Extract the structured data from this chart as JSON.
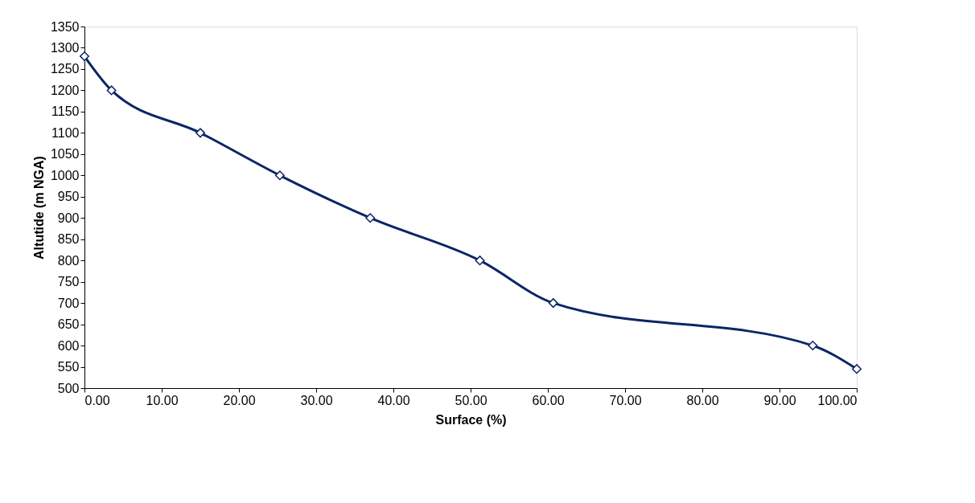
{
  "chart_data": {
    "type": "line",
    "xlabel": "Surface (%)",
    "ylabel": "Altutide (m NGA)",
    "x": [
      0.0,
      3.5,
      15.0,
      25.3,
      37.0,
      51.2,
      60.7,
      94.3,
      100.0
    ],
    "series": [
      {
        "color": "#0b2566",
        "values": [
          1280,
          1200,
          1100,
          1000,
          900,
          800,
          700,
          600,
          545
        ]
      }
    ],
    "xlim": [
      0,
      100
    ],
    "xticks": [
      {
        "value": 0,
        "label": "0.00"
      },
      {
        "value": 10,
        "label": "10.00"
      },
      {
        "value": 20,
        "label": "20.00"
      },
      {
        "value": 30,
        "label": "30.00"
      },
      {
        "value": 40,
        "label": "40.00"
      },
      {
        "value": 50,
        "label": "50.00"
      },
      {
        "value": 60,
        "label": "60.00"
      },
      {
        "value": 70,
        "label": "70.00"
      },
      {
        "value": 80,
        "label": "80.00"
      },
      {
        "value": 90,
        "label": "90.00"
      },
      {
        "value": 100,
        "label": "100.00"
      }
    ],
    "ylim": [
      500,
      1350
    ],
    "yticks": [
      500,
      550,
      600,
      650,
      700,
      750,
      800,
      850,
      900,
      950,
      1000,
      1050,
      1100,
      1150,
      1200,
      1250,
      1300,
      1350
    ],
    "grid": false,
    "marker": "diamond",
    "line_style": "solid"
  }
}
